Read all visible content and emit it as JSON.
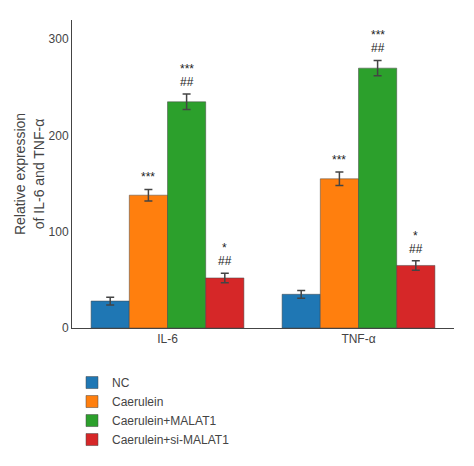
{
  "chart_data": {
    "type": "bar",
    "categories": [
      "IL-6",
      "TNF-α"
    ],
    "series": [
      {
        "name": "NC",
        "values": [
          28,
          35
        ],
        "errors": [
          4,
          4
        ]
      },
      {
        "name": "Caerulein",
        "values": [
          138,
          155
        ],
        "errors": [
          6,
          7
        ]
      },
      {
        "name": "Caerulein+MALAT1",
        "values": [
          235,
          270
        ],
        "errors": [
          8,
          8
        ]
      },
      {
        "name": "Caerulein+si-MALAT1",
        "values": [
          52,
          65
        ],
        "errors": [
          5,
          5
        ]
      }
    ],
    "ylabel": "Relative expression\nof IL-6 and TNF-α",
    "ylim": [
      0,
      320
    ],
    "yticks": [
      0,
      100,
      200,
      300
    ],
    "grid": false,
    "legend": "bottom",
    "annotations": [
      {
        "category": "IL-6",
        "series": "Caerulein",
        "text": "***"
      },
      {
        "category": "IL-6",
        "series": "Caerulein+MALAT1",
        "text": "##"
      },
      {
        "category": "IL-6",
        "series": "Caerulein+MALAT1",
        "text": "***"
      },
      {
        "category": "IL-6",
        "series": "Caerulein+si-MALAT1",
        "text": "##"
      },
      {
        "category": "IL-6",
        "series": "Caerulein+si-MALAT1",
        "text": "*"
      },
      {
        "category": "TNF-α",
        "series": "Caerulein",
        "text": "***"
      },
      {
        "category": "TNF-α",
        "series": "Caerulein+MALAT1",
        "text": "##"
      },
      {
        "category": "TNF-α",
        "series": "Caerulein+MALAT1",
        "text": "***"
      },
      {
        "category": "TNF-α",
        "series": "Caerulein+si-MALAT1",
        "text": "##"
      },
      {
        "category": "TNF-α",
        "series": "Caerulein+si-MALAT1",
        "text": "*"
      }
    ]
  }
}
